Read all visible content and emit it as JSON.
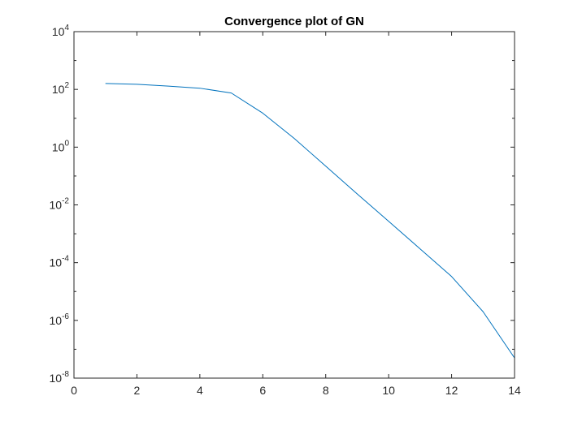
{
  "chart_data": {
    "type": "line",
    "title": "Convergence plot of GN",
    "xlabel": "",
    "ylabel": "",
    "xlim": [
      0,
      14
    ],
    "ylim": [
      1e-08,
      10000
    ],
    "yscale": "log",
    "grid": false,
    "legend": "none",
    "x_ticks": [
      0,
      2,
      4,
      6,
      8,
      10,
      12,
      14
    ],
    "x_tick_labels": [
      "0",
      "2",
      "4",
      "6",
      "8",
      "10",
      "12",
      "14"
    ],
    "y_ticks": [
      1e-08,
      1e-06,
      0.0001,
      0.01,
      1,
      100,
      10000
    ],
    "y_tick_labels": [
      {
        "base": "10",
        "exp": "-8"
      },
      {
        "base": "10",
        "exp": "-6"
      },
      {
        "base": "10",
        "exp": "-4"
      },
      {
        "base": "10",
        "exp": "-2"
      },
      {
        "base": "10",
        "exp": "0"
      },
      {
        "base": "10",
        "exp": "2"
      },
      {
        "base": "10",
        "exp": "4"
      }
    ],
    "series": [
      {
        "color": "#0072BD",
        "x": [
          1,
          2,
          3,
          4,
          5,
          6,
          7,
          8,
          9,
          10,
          11,
          12,
          13,
          14
        ],
        "y": [
          160,
          150,
          130,
          110,
          75,
          15,
          2,
          0.22,
          0.024,
          0.0027,
          0.0003,
          3.3e-05,
          2e-06,
          5e-08
        ]
      }
    ]
  }
}
